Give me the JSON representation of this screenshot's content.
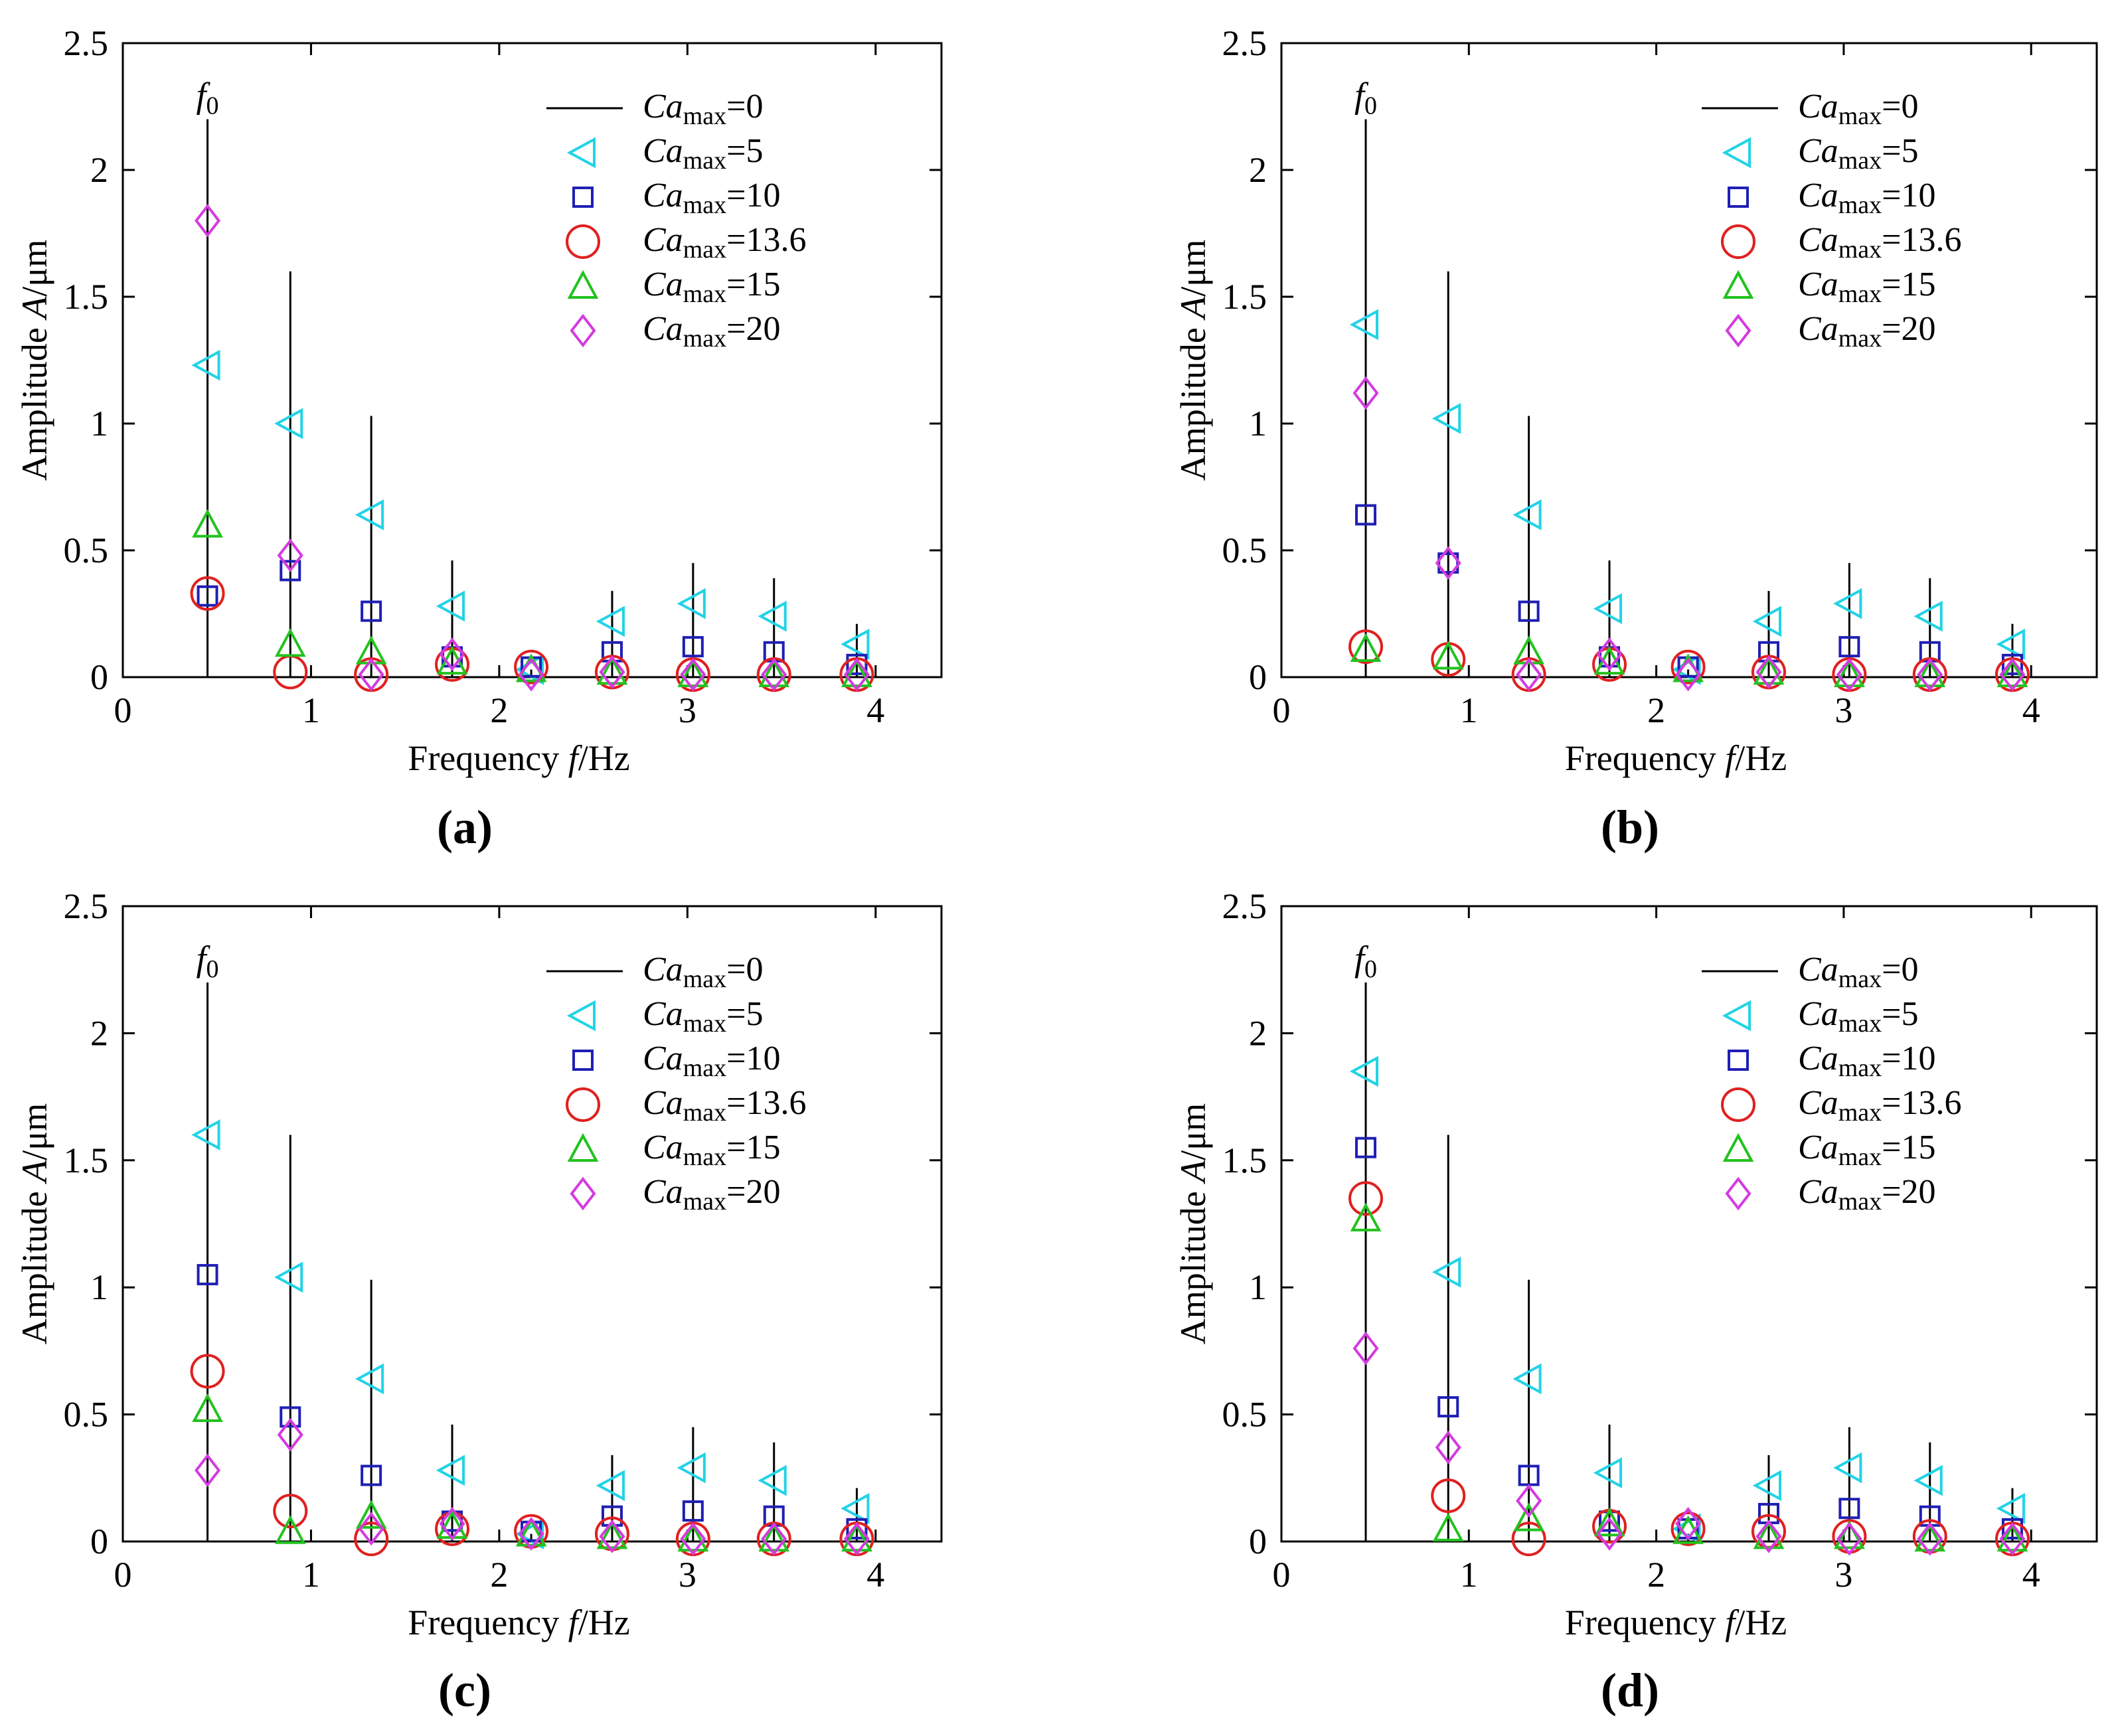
{
  "chart_data": [
    {
      "type": "scatter",
      "panel_label": "(a)",
      "xlabel_prefix": "Frequency ",
      "xlabel_var": "f",
      "xlabel_unit": "/Hz",
      "ylabel_prefix": "Amplitude ",
      "ylabel_var": "A",
      "ylabel_unit": "/μm",
      "xlim": [
        0,
        4.35
      ],
      "ylim": [
        0,
        2.5
      ],
      "xticks": [
        "0",
        "1",
        "2",
        "3",
        "4"
      ],
      "yticks": [
        "0",
        "0.5",
        "1",
        "1.5",
        "2",
        "2.5"
      ],
      "annotation": "f0",
      "x": [
        0.45,
        0.89,
        1.32,
        1.75,
        2.17,
        2.6,
        3.03,
        3.46,
        3.9
      ],
      "stems": {
        "name": "Camax=0",
        "values": [
          2.2,
          1.6,
          1.03,
          0.46,
          0.03,
          0.34,
          0.45,
          0.39,
          0.21
        ]
      },
      "series": [
        {
          "name": "Camax=5",
          "marker": "triangle-left",
          "color": "#22d3e6",
          "values": [
            1.23,
            1.0,
            0.64,
            0.28,
            0.03,
            0.22,
            0.29,
            0.24,
            0.13
          ]
        },
        {
          "name": "Camax=10",
          "marker": "square",
          "color": "#1f1fb4",
          "values": [
            0.32,
            0.42,
            0.26,
            0.08,
            0.04,
            0.1,
            0.12,
            0.1,
            0.05
          ]
        },
        {
          "name": "Camax=13.6",
          "marker": "circle",
          "color": "#e02020",
          "values": [
            0.33,
            0.02,
            0.01,
            0.05,
            0.04,
            0.02,
            0.01,
            0.01,
            0.01
          ]
        },
        {
          "name": "Camax=15",
          "marker": "triangle-up",
          "color": "#22c21e",
          "values": [
            0.6,
            0.13,
            0.1,
            0.06,
            0.03,
            0.02,
            0.01,
            0.01,
            0.01
          ]
        },
        {
          "name": "Camax=20",
          "marker": "diamond",
          "color": "#d43ae0",
          "values": [
            1.8,
            0.48,
            0.01,
            0.09,
            0.01,
            0.02,
            0.01,
            0.01,
            0.01
          ]
        }
      ]
    },
    {
      "type": "scatter",
      "panel_label": "(b)",
      "xlabel_prefix": "Frequency ",
      "xlabel_var": "f",
      "xlabel_unit": "/Hz",
      "ylabel_prefix": "Amplitude ",
      "ylabel_var": "A",
      "ylabel_unit": "/μm",
      "xlim": [
        0,
        4.35
      ],
      "ylim": [
        0,
        2.5
      ],
      "xticks": [
        "0",
        "1",
        "2",
        "3",
        "4"
      ],
      "yticks": [
        "0",
        "0.5",
        "1",
        "1.5",
        "2",
        "2.5"
      ],
      "annotation": "f0",
      "x": [
        0.45,
        0.89,
        1.32,
        1.75,
        2.17,
        2.6,
        3.03,
        3.46,
        3.9
      ],
      "stems": {
        "name": "Camax=0",
        "values": [
          2.2,
          1.6,
          1.03,
          0.46,
          0.03,
          0.34,
          0.45,
          0.39,
          0.21
        ]
      },
      "series": [
        {
          "name": "Camax=5",
          "marker": "triangle-left",
          "color": "#22d3e6",
          "values": [
            1.39,
            1.02,
            0.64,
            0.27,
            0.03,
            0.22,
            0.29,
            0.24,
            0.13
          ]
        },
        {
          "name": "Camax=10",
          "marker": "square",
          "color": "#1f1fb4",
          "values": [
            0.64,
            0.45,
            0.26,
            0.08,
            0.04,
            0.1,
            0.12,
            0.1,
            0.05
          ]
        },
        {
          "name": "Camax=13.6",
          "marker": "circle",
          "color": "#e02020",
          "values": [
            0.12,
            0.07,
            0.01,
            0.05,
            0.04,
            0.02,
            0.01,
            0.01,
            0.01
          ]
        },
        {
          "name": "Camax=15",
          "marker": "triangle-up",
          "color": "#22c21e",
          "values": [
            0.11,
            0.08,
            0.1,
            0.06,
            0.03,
            0.02,
            0.01,
            0.01,
            0.01
          ]
        },
        {
          "name": "Camax=20",
          "marker": "diamond",
          "color": "#d43ae0",
          "values": [
            1.12,
            0.45,
            0.01,
            0.09,
            0.01,
            0.02,
            0.01,
            0.01,
            0.01
          ]
        }
      ]
    },
    {
      "type": "scatter",
      "panel_label": "(c)",
      "xlabel_prefix": "Frequency ",
      "xlabel_var": "f",
      "xlabel_unit": "/Hz",
      "ylabel_prefix": "Amplitude ",
      "ylabel_var": "A",
      "ylabel_unit": "/μm",
      "xlim": [
        0,
        4.35
      ],
      "ylim": [
        0,
        2.5
      ],
      "xticks": [
        "0",
        "1",
        "2",
        "3",
        "4"
      ],
      "yticks": [
        "0",
        "0.5",
        "1",
        "1.5",
        "2",
        "2.5"
      ],
      "annotation": "f0",
      "x": [
        0.45,
        0.89,
        1.32,
        1.75,
        2.17,
        2.6,
        3.03,
        3.46,
        3.9
      ],
      "stems": {
        "name": "Camax=0",
        "values": [
          2.2,
          1.6,
          1.03,
          0.46,
          0.03,
          0.34,
          0.45,
          0.39,
          0.21
        ]
      },
      "series": [
        {
          "name": "Camax=5",
          "marker": "triangle-left",
          "color": "#22d3e6",
          "values": [
            1.6,
            1.04,
            0.64,
            0.28,
            0.03,
            0.22,
            0.29,
            0.24,
            0.13
          ]
        },
        {
          "name": "Camax=10",
          "marker": "square",
          "color": "#1f1fb4",
          "values": [
            1.05,
            0.49,
            0.26,
            0.08,
            0.04,
            0.1,
            0.12,
            0.1,
            0.05
          ]
        },
        {
          "name": "Camax=13.6",
          "marker": "circle",
          "color": "#e02020",
          "values": [
            0.67,
            0.12,
            0.01,
            0.05,
            0.04,
            0.03,
            0.01,
            0.01,
            0.01
          ]
        },
        {
          "name": "Camax=15",
          "marker": "triangle-up",
          "color": "#22c21e",
          "values": [
            0.52,
            0.04,
            0.1,
            0.06,
            0.03,
            0.02,
            0.01,
            0.01,
            0.01
          ]
        },
        {
          "name": "Camax=20",
          "marker": "diamond",
          "color": "#d43ae0",
          "values": [
            0.28,
            0.42,
            0.05,
            0.07,
            0.03,
            0.02,
            0.01,
            0.01,
            0.01
          ]
        }
      ]
    },
    {
      "type": "scatter",
      "panel_label": "(d)",
      "xlabel_prefix": "Frequency ",
      "xlabel_var": "f",
      "xlabel_unit": "/Hz",
      "ylabel_prefix": "Amplitude ",
      "ylabel_var": "A",
      "ylabel_unit": "/μm",
      "xlim": [
        0,
        4.35
      ],
      "ylim": [
        0,
        2.5
      ],
      "xticks": [
        "0",
        "1",
        "2",
        "3",
        "4"
      ],
      "yticks": [
        "0",
        "0.5",
        "1",
        "1.5",
        "2",
        "2.5"
      ],
      "annotation": "f0",
      "x": [
        0.45,
        0.89,
        1.32,
        1.75,
        2.17,
        2.6,
        3.03,
        3.46,
        3.9
      ],
      "stems": {
        "name": "Camax=0",
        "values": [
          2.2,
          1.6,
          1.03,
          0.46,
          0.03,
          0.34,
          0.45,
          0.39,
          0.21
        ]
      },
      "series": [
        {
          "name": "Camax=5",
          "marker": "triangle-left",
          "color": "#22d3e6",
          "values": [
            1.85,
            1.06,
            0.64,
            0.27,
            0.05,
            0.22,
            0.29,
            0.24,
            0.13
          ]
        },
        {
          "name": "Camax=10",
          "marker": "square",
          "color": "#1f1fb4",
          "values": [
            1.55,
            0.53,
            0.26,
            0.08,
            0.05,
            0.11,
            0.13,
            0.1,
            0.05
          ]
        },
        {
          "name": "Camax=13.6",
          "marker": "circle",
          "color": "#e02020",
          "values": [
            1.35,
            0.18,
            0.01,
            0.06,
            0.05,
            0.04,
            0.02,
            0.02,
            0.01
          ]
        },
        {
          "name": "Camax=15",
          "marker": "triangle-up",
          "color": "#22c21e",
          "values": [
            1.27,
            0.05,
            0.09,
            0.07,
            0.04,
            0.02,
            0.02,
            0.01,
            0.01
          ]
        },
        {
          "name": "Camax=20",
          "marker": "diamond",
          "color": "#d43ae0",
          "values": [
            0.76,
            0.37,
            0.16,
            0.03,
            0.07,
            0.02,
            0.01,
            0.01,
            0.01
          ]
        }
      ]
    }
  ]
}
